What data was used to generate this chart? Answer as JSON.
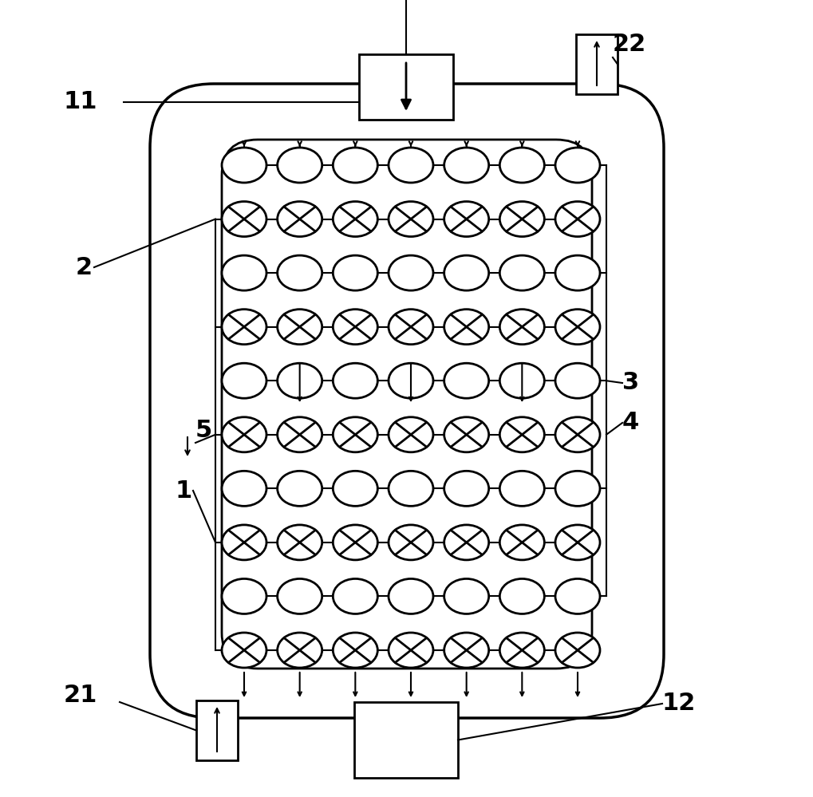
{
  "fig_width": 10.19,
  "fig_height": 9.99,
  "dpi": 100,
  "bg_color": "#ffffff",
  "line_color": "#000000",
  "lw_heavy": 2.5,
  "lw_medium": 2.0,
  "lw_thin": 1.5
}
